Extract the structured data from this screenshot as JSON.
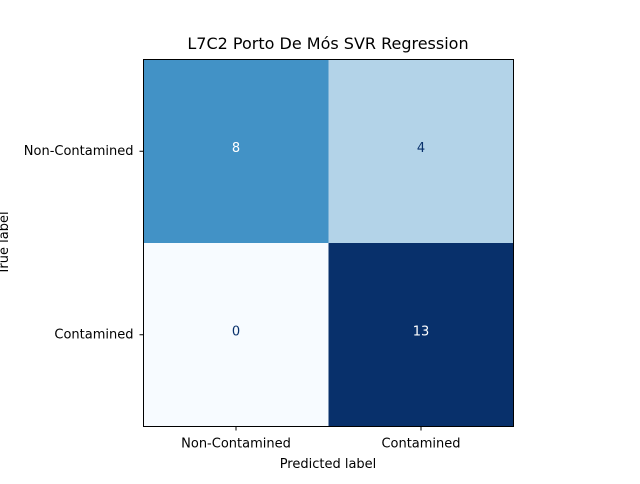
{
  "chart_data": {
    "type": "heatmap",
    "title": "L7C2 Porto De Mós SVR Regression",
    "xlabel": "Predicted label",
    "ylabel": "True label",
    "x_categories": [
      "Non-Contamined",
      "Contamined"
    ],
    "y_categories": [
      "Non-Contamined",
      "Contamined"
    ],
    "values": [
      [
        8,
        4
      ],
      [
        0,
        13
      ]
    ],
    "colormap": "Blues",
    "grid": false,
    "colorbar": false,
    "colors": {
      "cell_0_0": "#4292c6",
      "cell_0_1": "#b3d3e8",
      "cell_1_0": "#f7fbff",
      "cell_1_1": "#08306b",
      "text_on_dark": "#ffffff",
      "text_on_light": "#08306b"
    }
  }
}
